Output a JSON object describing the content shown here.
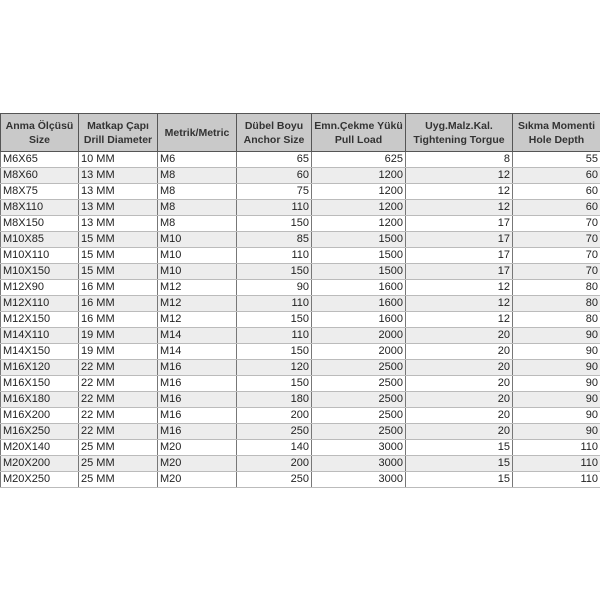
{
  "table": {
    "headers": [
      [
        "Anma Ölçüsü",
        "Size"
      ],
      [
        "Matkap Çapı",
        "Drill Diameter"
      ],
      [
        "Metrik/Metric",
        ""
      ],
      [
        "Dübel Boyu",
        "Anchor Size"
      ],
      [
        "Emn.Çekme Yükü",
        "Pull Load"
      ],
      [
        "Uyg.Malz.Kal.",
        "Tightening Torgue"
      ],
      [
        "Sıkma Momenti",
        "Hole Depth"
      ]
    ],
    "rows": [
      [
        "M6X65",
        "10 MM",
        "M6",
        "65",
        "625",
        "8",
        "55"
      ],
      [
        "M8X60",
        "13 MM",
        "M8",
        "60",
        "1200",
        "12",
        "60"
      ],
      [
        "M8X75",
        "13 MM",
        "M8",
        "75",
        "1200",
        "12",
        "60"
      ],
      [
        "M8X110",
        "13 MM",
        "M8",
        "110",
        "1200",
        "12",
        "60"
      ],
      [
        "M8X150",
        "13 MM",
        "M8",
        "150",
        "1200",
        "17",
        "70"
      ],
      [
        "M10X85",
        "15 MM",
        "M10",
        "85",
        "1500",
        "17",
        "70"
      ],
      [
        "M10X110",
        "15 MM",
        "M10",
        "110",
        "1500",
        "17",
        "70"
      ],
      [
        "M10X150",
        "15 MM",
        "M10",
        "150",
        "1500",
        "17",
        "70"
      ],
      [
        "M12X90",
        "16 MM",
        "M12",
        "90",
        "1600",
        "12",
        "80"
      ],
      [
        "M12X110",
        "16 MM",
        "M12",
        "110",
        "1600",
        "12",
        "80"
      ],
      [
        "M12X150",
        "16 MM",
        "M12",
        "150",
        "1600",
        "12",
        "80"
      ],
      [
        "M14X110",
        "19 MM",
        "M14",
        "110",
        "2000",
        "20",
        "90"
      ],
      [
        "M14X150",
        "19 MM",
        "M14",
        "150",
        "2000",
        "20",
        "90"
      ],
      [
        "M16X120",
        "22 MM",
        "M16",
        "120",
        "2500",
        "20",
        "90"
      ],
      [
        "M16X150",
        "22 MM",
        "M16",
        "150",
        "2500",
        "20",
        "90"
      ],
      [
        "M16X180",
        "22 MM",
        "M16",
        "180",
        "2500",
        "20",
        "90"
      ],
      [
        "M16X200",
        "22 MM",
        "M16",
        "200",
        "2500",
        "20",
        "90"
      ],
      [
        "M16X250",
        "22 MM",
        "M16",
        "250",
        "2500",
        "20",
        "90"
      ],
      [
        "M20X140",
        "25 MM",
        "M20",
        "140",
        "3000",
        "15",
        "110"
      ],
      [
        "M20X200",
        "25 MM",
        "M20",
        "200",
        "3000",
        "15",
        "110"
      ],
      [
        "M20X250",
        "25 MM",
        "M20",
        "250",
        "3000",
        "15",
        "110"
      ]
    ]
  },
  "colors": {
    "header_bg": "#c9c9c9",
    "alt_row_bg": "#ededed"
  }
}
